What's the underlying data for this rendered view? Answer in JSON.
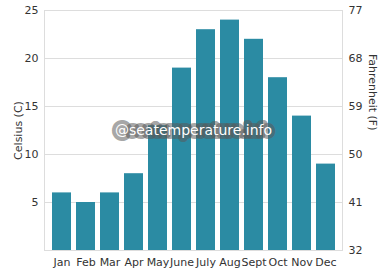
{
  "chart_data": {
    "type": "bar",
    "categories": [
      "Jan",
      "Feb",
      "Mar",
      "Apr",
      "May",
      "June",
      "July",
      "Aug",
      "Sept",
      "Oct",
      "Nov",
      "Dec"
    ],
    "values": [
      6,
      5,
      6,
      8,
      13,
      19,
      23,
      24,
      22,
      18,
      14,
      9
    ],
    "color": "#2b8ba3",
    "ylabel": "Celsius (C)",
    "y2label": "Fahrenheit (F)",
    "ylim": [
      0,
      25
    ],
    "yticks": [
      5,
      10,
      15,
      20,
      25
    ],
    "y2lim": [
      32,
      77
    ],
    "y2ticks": [
      32,
      41,
      50,
      59,
      68,
      77
    ],
    "annotation": "@seatemperature.info",
    "grid": true
  }
}
